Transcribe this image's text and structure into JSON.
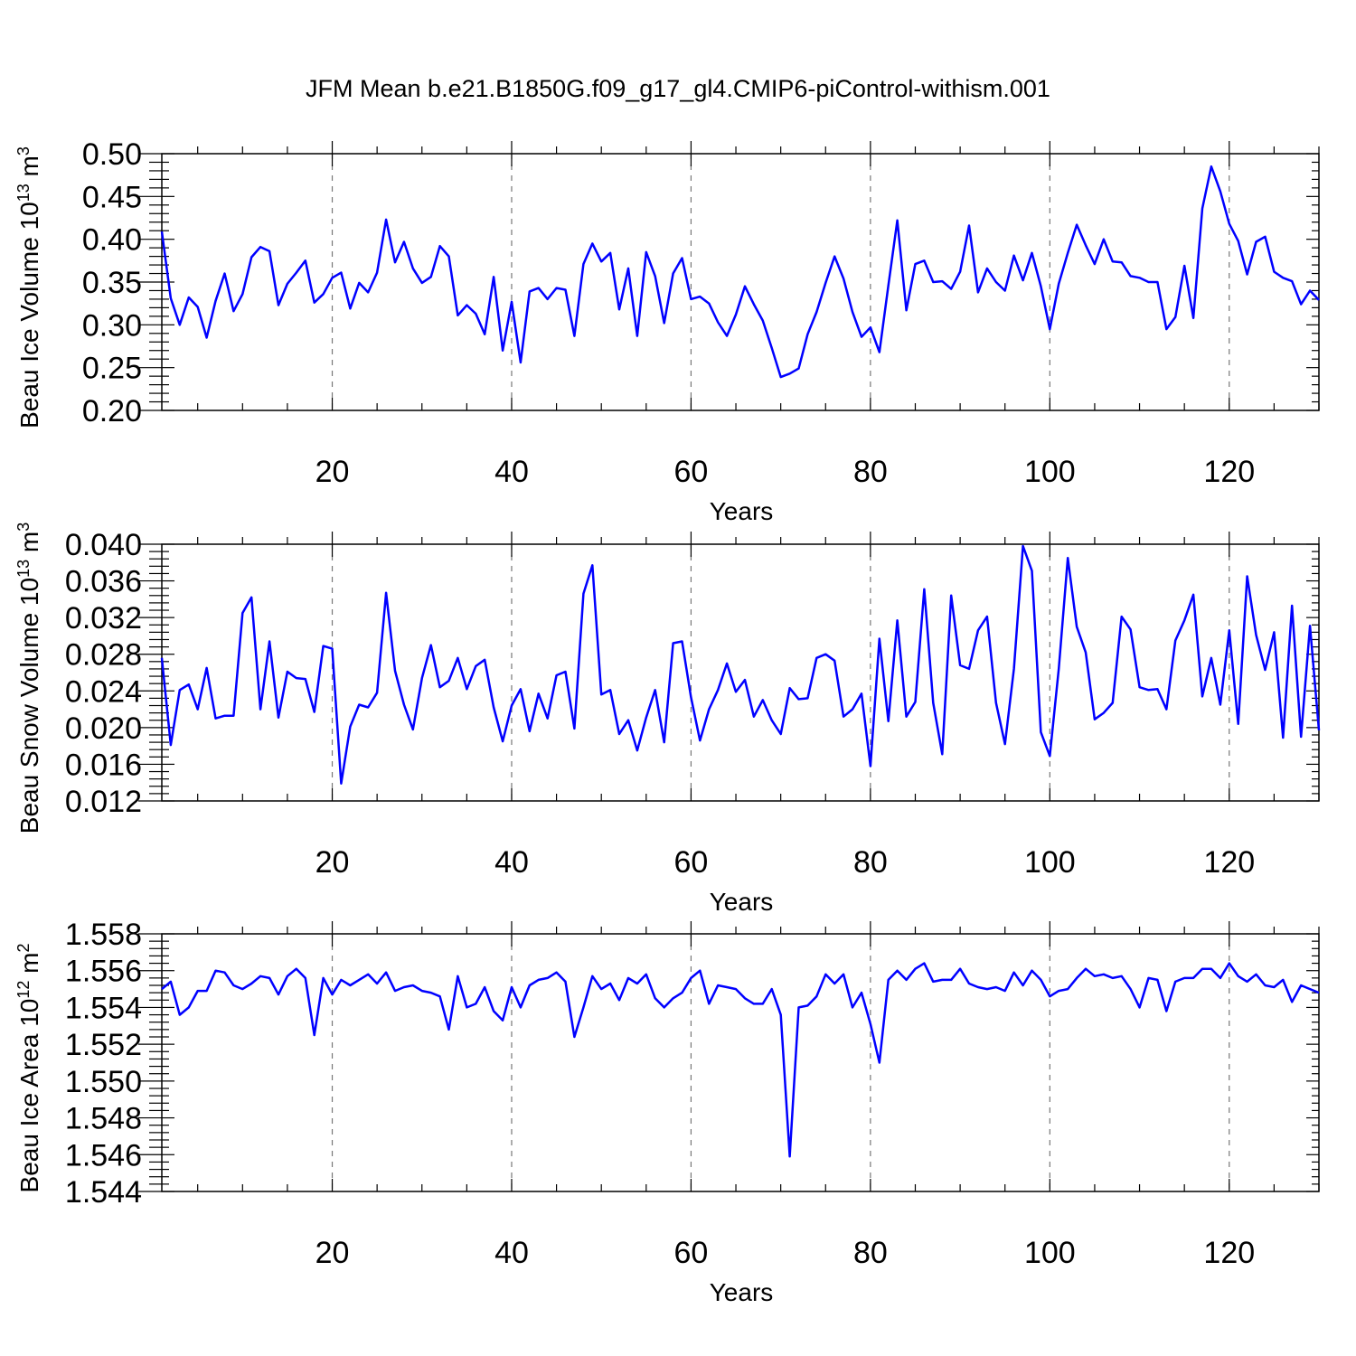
{
  "title": "JFM Mean b.e21.B1850G.f09_g17_gl4.CMIP6-piControl-withism.001",
  "colors": {
    "line": "#0000ff",
    "grid": "#777777"
  },
  "chart_data": [
    {
      "type": "line",
      "ylabel_main": "Beau Ice Volume 10",
      "ylabel_exp1": "13",
      "ylabel_mid": " m",
      "ylabel_exp2": "3",
      "xlabel": "Years",
      "xlim": [
        1,
        130
      ],
      "ylim": [
        0.2,
        0.5
      ],
      "yticks": [
        "0.20",
        "0.25",
        "0.30",
        "0.35",
        "0.40",
        "0.45",
        "0.50"
      ],
      "xticks": [
        "20",
        "40",
        "60",
        "80",
        "100",
        "120"
      ],
      "series": [
        {
          "name": "Beau Ice Volume",
          "values": [
            0.409,
            0.331,
            0.3,
            0.332,
            0.321,
            0.285,
            0.328,
            0.36,
            0.316,
            0.336,
            0.379,
            0.391,
            0.386,
            0.323,
            0.348,
            0.361,
            0.375,
            0.326,
            0.336,
            0.355,
            0.361,
            0.319,
            0.349,
            0.338,
            0.361,
            0.423,
            0.373,
            0.397,
            0.366,
            0.349,
            0.356,
            0.392,
            0.38,
            0.311,
            0.323,
            0.313,
            0.289,
            0.356,
            0.27,
            0.327,
            0.256,
            0.339,
            0.343,
            0.33,
            0.343,
            0.341,
            0.287,
            0.371,
            0.395,
            0.374,
            0.384,
            0.318,
            0.366,
            0.287,
            0.385,
            0.357,
            0.302,
            0.36,
            0.378,
            0.33,
            0.333,
            0.325,
            0.303,
            0.287,
            0.312,
            0.345,
            0.324,
            0.305,
            0.273,
            0.239,
            0.243,
            0.249,
            0.289,
            0.315,
            0.349,
            0.38,
            0.354,
            0.315,
            0.286,
            0.297,
            0.268,
            0.346,
            0.422,
            0.317,
            0.371,
            0.375,
            0.35,
            0.351,
            0.342,
            0.362,
            0.416,
            0.338,
            0.366,
            0.35,
            0.34,
            0.381,
            0.352,
            0.384,
            0.345,
            0.295,
            0.348,
            0.384,
            0.417,
            0.393,
            0.371,
            0.4,
            0.374,
            0.373,
            0.357,
            0.355,
            0.35,
            0.35,
            0.295,
            0.309,
            0.369,
            0.308,
            0.436,
            0.485,
            0.456,
            0.418,
            0.398,
            0.359,
            0.397,
            0.403,
            0.362,
            0.355,
            0.351,
            0.324,
            0.34,
            0.329
          ]
        }
      ]
    },
    {
      "type": "line",
      "ylabel_main": "Beau Snow Volume 10",
      "ylabel_exp1": "13",
      "ylabel_mid": " m",
      "ylabel_exp2": "3",
      "xlabel": "Years",
      "xlim": [
        1,
        130
      ],
      "ylim": [
        0.012,
        0.04
      ],
      "yticks": [
        "0.012",
        "0.016",
        "0.020",
        "0.024",
        "0.028",
        "0.032",
        "0.036",
        "0.040"
      ],
      "xticks": [
        "20",
        "40",
        "60",
        "80",
        "100",
        "120"
      ],
      "series": [
        {
          "name": "Beau Snow Volume",
          "values": [
            0.0276,
            0.0181,
            0.0241,
            0.0247,
            0.022,
            0.0265,
            0.021,
            0.0213,
            0.0213,
            0.0325,
            0.0342,
            0.022,
            0.0294,
            0.0211,
            0.0261,
            0.0254,
            0.0253,
            0.0217,
            0.0289,
            0.0286,
            0.0139,
            0.0201,
            0.0225,
            0.0222,
            0.0238,
            0.0347,
            0.0262,
            0.0225,
            0.0198,
            0.0254,
            0.029,
            0.0244,
            0.0251,
            0.0276,
            0.0242,
            0.0267,
            0.0274,
            0.0222,
            0.0185,
            0.0224,
            0.0242,
            0.0196,
            0.0237,
            0.021,
            0.0257,
            0.0261,
            0.0199,
            0.0346,
            0.0377,
            0.0236,
            0.0241,
            0.0193,
            0.0208,
            0.0175,
            0.0211,
            0.0241,
            0.0184,
            0.0292,
            0.0294,
            0.0233,
            0.0186,
            0.022,
            0.0241,
            0.027,
            0.0239,
            0.0252,
            0.0212,
            0.023,
            0.0208,
            0.0193,
            0.0243,
            0.0231,
            0.0232,
            0.0276,
            0.028,
            0.0273,
            0.0212,
            0.022,
            0.0237,
            0.0158,
            0.0297,
            0.0207,
            0.0317,
            0.0212,
            0.0228,
            0.0351,
            0.0227,
            0.0171,
            0.0344,
            0.0268,
            0.0264,
            0.0306,
            0.0321,
            0.0227,
            0.0182,
            0.0264,
            0.0398,
            0.0371,
            0.0195,
            0.0169,
            0.0264,
            0.0385,
            0.031,
            0.0282,
            0.0209,
            0.0216,
            0.0227,
            0.0321,
            0.0307,
            0.0244,
            0.0241,
            0.0242,
            0.022,
            0.0295,
            0.0317,
            0.0345,
            0.0234,
            0.0276,
            0.0225,
            0.0306,
            0.0204,
            0.0365,
            0.0301,
            0.0263,
            0.0304,
            0.0189,
            0.0333,
            0.019,
            0.0311,
            0.0197
          ]
        }
      ]
    },
    {
      "type": "line",
      "ylabel_main": "Beau Ice Area 10",
      "ylabel_exp1": "12",
      "ylabel_mid": " m",
      "ylabel_exp2": "2",
      "xlabel": "Years",
      "xlim": [
        1,
        130
      ],
      "ylim": [
        1.544,
        1.558
      ],
      "yticks": [
        "1.544",
        "1.546",
        "1.548",
        "1.550",
        "1.552",
        "1.554",
        "1.556",
        "1.558"
      ],
      "xticks": [
        "20",
        "40",
        "60",
        "80",
        "100",
        "120"
      ],
      "series": [
        {
          "name": "Beau Ice Area",
          "values": [
            1.555,
            1.5554,
            1.5536,
            1.554,
            1.5549,
            1.5549,
            1.556,
            1.5559,
            1.5552,
            1.555,
            1.5553,
            1.5557,
            1.5556,
            1.5547,
            1.5557,
            1.5561,
            1.5556,
            1.5525,
            1.5556,
            1.5547,
            1.5555,
            1.5552,
            1.5555,
            1.5558,
            1.5553,
            1.5559,
            1.5549,
            1.5551,
            1.5552,
            1.5549,
            1.5548,
            1.5546,
            1.5528,
            1.5557,
            1.554,
            1.5542,
            1.5551,
            1.5538,
            1.5533,
            1.5551,
            1.554,
            1.5552,
            1.5555,
            1.5556,
            1.5559,
            1.5554,
            1.5524,
            1.554,
            1.5557,
            1.555,
            1.5553,
            1.5544,
            1.5556,
            1.5553,
            1.5558,
            1.5545,
            1.554,
            1.5545,
            1.5548,
            1.5556,
            1.556,
            1.5542,
            1.5552,
            1.5551,
            1.555,
            1.5545,
            1.5542,
            1.5542,
            1.555,
            1.5536,
            1.5459,
            1.554,
            1.5541,
            1.5546,
            1.5558,
            1.5553,
            1.5558,
            1.554,
            1.5548,
            1.5531,
            1.551,
            1.5555,
            1.556,
            1.5555,
            1.5561,
            1.5564,
            1.5554,
            1.5555,
            1.5555,
            1.5561,
            1.5553,
            1.5551,
            1.555,
            1.5551,
            1.5549,
            1.5559,
            1.5552,
            1.556,
            1.5555,
            1.5546,
            1.5549,
            1.555,
            1.5556,
            1.5561,
            1.5557,
            1.5558,
            1.5556,
            1.5557,
            1.555,
            1.554,
            1.5556,
            1.5555,
            1.5538,
            1.5554,
            1.5556,
            1.5556,
            1.5561,
            1.5561,
            1.5556,
            1.5564,
            1.5557,
            1.5554,
            1.5558,
            1.5552,
            1.5551,
            1.5555,
            1.5543,
            1.5552,
            1.555,
            1.5548
          ]
        }
      ]
    }
  ]
}
